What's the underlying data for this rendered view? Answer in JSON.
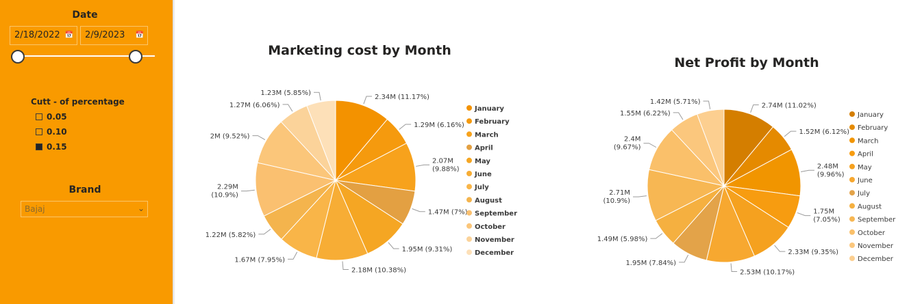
{
  "filters": {
    "date": {
      "title": "Date",
      "start": "2/18/2022",
      "end": "2/9/2023",
      "calendar_icon": "calendar-icon",
      "range_fraction": [
        0.0,
        0.86
      ]
    },
    "cutt": {
      "title": "Cutt - of percentage",
      "options": [
        {
          "label": "0.05",
          "checked": false
        },
        {
          "label": "0.10",
          "checked": false
        },
        {
          "label": "0.15",
          "checked": true
        }
      ]
    },
    "brand": {
      "title": "Brand",
      "value": "Bajaj",
      "chevron_icon": "chevron-down-icon"
    }
  },
  "colors": {
    "sidebar": "#f99a00",
    "months": [
      "#f39200",
      "#f59a0e",
      "#f7a21c",
      "#e3a042",
      "#f5a623",
      "#f7ad35",
      "#f9b548",
      "#f4b44d",
      "#fac070",
      "#fbc67a",
      "#fbd39a",
      "#fde0b8"
    ],
    "months_profit": [
      "#d47e00",
      "#e58a00",
      "#f19500",
      "#f79c10",
      "#f5a11f",
      "#f7a830",
      "#e3a349",
      "#f5b040",
      "#f7b753",
      "#fac06a",
      "#fbc77d",
      "#fccf90"
    ]
  },
  "chart_data": [
    {
      "type": "pie",
      "title": "Marketing cost by Month",
      "categories": [
        "January",
        "February",
        "March",
        "April",
        "May",
        "June",
        "July",
        "August",
        "September",
        "October",
        "November",
        "December"
      ],
      "values": [
        2.34,
        1.29,
        2.07,
        1.47,
        1.95,
        2.18,
        1.67,
        1.22,
        2.29,
        2.0,
        1.27,
        1.23
      ],
      "unit": "M",
      "data_labels": [
        "2.34M (11.17%)",
        "1.29M (6.16%)",
        "2.07M (9.88%)",
        "1.47M (7%)",
        "1.95M (9.31%)",
        "2.18M (10.38%)",
        "1.67M (7.95%)",
        "1.22M (5.82%)",
        "2.29M (10.9%)",
        "2M (9.52%)",
        "1.27M (6.06%)",
        "1.23M (5.85%)"
      ],
      "legend": "right"
    },
    {
      "type": "pie",
      "title": "Net Profit by Month",
      "categories": [
        "January",
        "February",
        "March",
        "April",
        "May",
        "June",
        "July",
        "August",
        "September",
        "October",
        "November",
        "December"
      ],
      "values": [
        2.74,
        1.52,
        2.48,
        1.75,
        2.33,
        2.53,
        1.95,
        1.49,
        2.71,
        2.4,
        1.55,
        1.42
      ],
      "unit": "M",
      "data_labels": [
        "2.74M (11.02%)",
        "1.52M (6.12%)",
        "2.48M (9.96%)",
        "1.75M (7.05%)",
        "2.33M (9.35%)",
        "2.53M (10.17%)",
        "1.95M (7.84%)",
        "1.49M (5.98%)",
        "2.71M (10.9%)",
        "2.4M (9.67%)",
        "1.55M (6.22%)",
        "1.42M (5.71%)"
      ],
      "legend": "right"
    }
  ]
}
